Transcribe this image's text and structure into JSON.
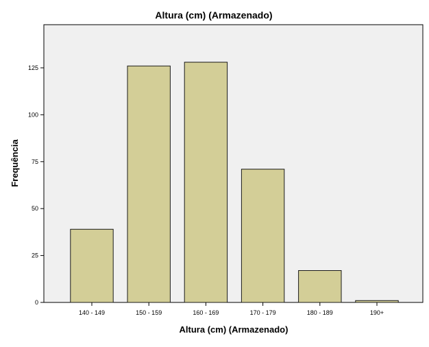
{
  "chart_data": {
    "type": "bar",
    "title": "Altura (cm) (Armazenado)",
    "xlabel": "Altura (cm) (Armazenado)",
    "ylabel": "Frequência",
    "categories": [
      "140 - 149",
      "150 - 159",
      "160 - 169",
      "170 - 179",
      "180 - 189",
      "190+"
    ],
    "values": [
      39,
      126,
      128,
      71,
      17,
      1
    ],
    "ylim": [
      0,
      148
    ],
    "yticks": [
      0,
      25,
      50,
      75,
      100,
      125
    ],
    "grid": false,
    "legend": "none"
  },
  "colors": {
    "plot_background": "#f0f0f0",
    "bar_fill": "#d3ce97",
    "bar_stroke": "#1a1a1a",
    "axis": "#000000"
  }
}
